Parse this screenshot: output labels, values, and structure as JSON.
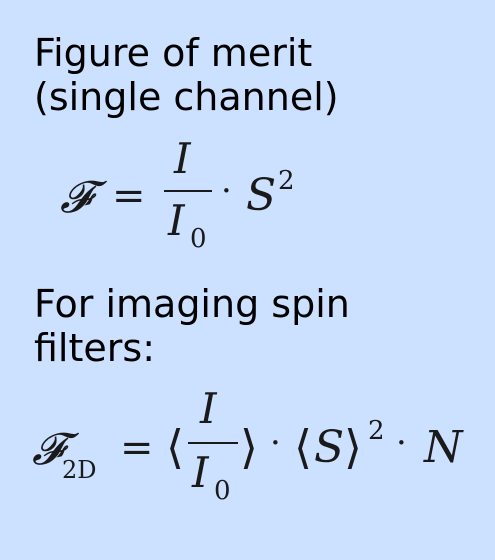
{
  "heading1": {
    "line1": "Figure of merit",
    "line2": "(single channel)"
  },
  "equation1": {
    "lhs": "𝓕",
    "equals": "=",
    "numerator": "I",
    "denominator_base": "I",
    "denominator_sub": "0",
    "dot": "·",
    "S": "S",
    "S_exp": "2"
  },
  "heading2": {
    "line1": "For imaging spin",
    "line2": "filters:"
  },
  "equation2": {
    "lhs": "𝓕",
    "lhs_sub": "2D",
    "equals": "=",
    "lbracket1": "⟨",
    "numerator": "I",
    "denominator_base": "I",
    "denominator_sub": "0",
    "rbracket1": "⟩",
    "dot1": "·",
    "lbracket2": "⟨",
    "S": "S",
    "rbracket2": "⟩",
    "S_exp": "2",
    "dot2": "·",
    "N": "N"
  }
}
